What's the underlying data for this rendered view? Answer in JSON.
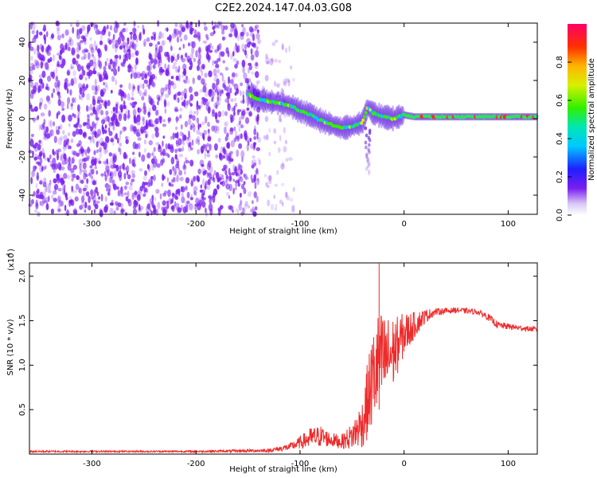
{
  "figure_title": "C2E2.2024.147.04.03.G08",
  "colors": {
    "snr_line": "#ee2a2a",
    "spectrogram_noise": "#7a1ef0",
    "axis": "#000000"
  },
  "chart_data": [
    {
      "type": "heatmap",
      "xlabel": "Height of straight line (km)",
      "ylabel": "Frequency (Hz)",
      "xlim": [
        -360,
        128
      ],
      "ylim": [
        -50,
        50
      ],
      "x_ticks": [
        -300,
        -200,
        -100,
        0,
        100
      ],
      "y_ticks": [
        -40,
        -20,
        0,
        20,
        40
      ],
      "grid": false,
      "noise_region_x": [
        -360,
        -140
      ],
      "signal_track": {
        "x": [
          -150,
          -140,
          -130,
          -120,
          -110,
          -100,
          -90,
          -80,
          -70,
          -60,
          -50,
          -40,
          -35,
          -30,
          -20,
          -10,
          0,
          10,
          20,
          40,
          60,
          80,
          100,
          128
        ],
        "y": [
          13,
          10,
          9,
          8,
          7,
          4,
          2,
          -1,
          -3,
          -5,
          -4,
          -2,
          6,
          3,
          1,
          0,
          2,
          1,
          1,
          1,
          1,
          1,
          1,
          1
        ]
      },
      "colorbar": {
        "label": "Normalized spectral amplitude",
        "range": [
          0.0,
          1.0
        ],
        "ticks": [
          "0.0",
          "0.2",
          "0.4",
          "0.6",
          "0.8"
        ]
      }
    },
    {
      "type": "line",
      "xlabel": "Height of straight line (km)",
      "ylabel": "SNR (10 * v/v)",
      "y_multiplier_label": "(x10",
      "y_multiplier_exp": "4",
      "xlim": [
        -360,
        128
      ],
      "ylim": [
        0,
        2.15
      ],
      "x_ticks": [
        -300,
        -200,
        -100,
        0,
        100
      ],
      "y_ticks": [
        "0.5",
        "1.0",
        "1.5",
        "2.0"
      ],
      "grid": false,
      "series": [
        {
          "envelope": {
            "x": [
              -360,
              -200,
              -130,
              -110,
              -100,
              -90,
              -80,
              -70,
              -60,
              -50,
              -40,
              -35,
              -30,
              -25,
              -20,
              -15,
              -10,
              -5,
              0,
              10,
              20,
              30,
              50,
              70,
              80,
              90,
              110,
              128
            ],
            "mean": [
              0.03,
              0.03,
              0.04,
              0.08,
              0.13,
              0.18,
              0.2,
              0.16,
              0.14,
              0.2,
              0.35,
              0.6,
              0.85,
              1.0,
              1.05,
              1.1,
              1.15,
              1.25,
              1.35,
              1.45,
              1.55,
              1.6,
              1.62,
              1.6,
              1.55,
              1.45,
              1.42,
              1.4
            ],
            "spread": [
              0.01,
              0.01,
              0.02,
              0.04,
              0.07,
              0.12,
              0.12,
              0.08,
              0.08,
              0.15,
              0.28,
              0.45,
              0.55,
              0.6,
              0.55,
              0.45,
              0.4,
              0.3,
              0.25,
              0.15,
              0.08,
              0.04,
              0.03,
              0.03,
              0.04,
              0.04,
              0.03,
              0.03
            ]
          },
          "spike": {
            "x": -24,
            "y": 2.15
          }
        }
      ]
    }
  ]
}
